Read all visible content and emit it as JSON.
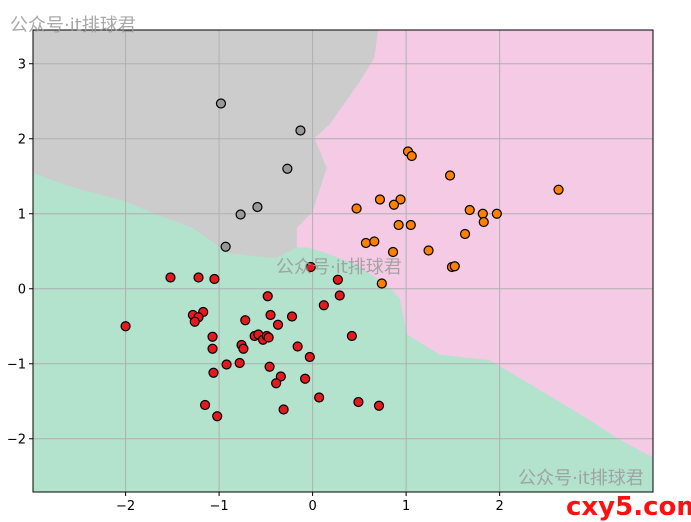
{
  "chart_data": {
    "type": "scatter",
    "title": "",
    "xlabel": "",
    "ylabel": "",
    "xlim": [
      -2.99,
      3.64
    ],
    "ylim": [
      -2.71,
      3.45
    ],
    "grid": true,
    "xticks": [
      -2,
      -1,
      0,
      1,
      2
    ],
    "yticks": [
      -2,
      -1,
      0,
      1,
      2,
      3
    ],
    "xtick_labels": [
      "−2",
      "−1",
      "0",
      "1",
      "2"
    ],
    "ytick_labels": [
      "−2",
      "−1",
      "0",
      "1",
      "2",
      "3"
    ],
    "regions": [
      {
        "class": "pink",
        "color": "#f4cae4",
        "vertices": [
          [
            0.7,
            3.45
          ],
          [
            3.64,
            3.45
          ],
          [
            3.64,
            -2.25
          ],
          [
            3.28,
            -2.01
          ],
          [
            2.96,
            -1.75
          ],
          [
            2.43,
            -1.35
          ],
          [
            1.89,
            -0.95
          ],
          [
            1.36,
            -0.88
          ],
          [
            1.01,
            -0.61
          ],
          [
            0.93,
            -0.12
          ],
          [
            0.79,
            0.05
          ],
          [
            0.47,
            0.32
          ],
          [
            0.11,
            0.49
          ],
          [
            -0.06,
            0.55
          ],
          [
            -0.17,
            0.55
          ],
          [
            -0.17,
            3.45
          ]
        ]
      },
      {
        "class": "gray",
        "color": "#cccccc",
        "vertices": [
          [
            -2.99,
            3.45
          ],
          [
            0.7,
            3.45
          ],
          [
            0.66,
            3.08
          ],
          [
            0.53,
            2.81
          ],
          [
            0.18,
            2.19
          ],
          [
            0.02,
            2.01
          ],
          [
            0.15,
            1.61
          ],
          [
            0.0,
            1.03
          ],
          [
            -0.17,
            0.81
          ],
          [
            -0.17,
            0.55
          ],
          [
            -0.39,
            0.41
          ],
          [
            -0.89,
            0.47
          ],
          [
            -1.03,
            0.59
          ],
          [
            -1.28,
            0.81
          ],
          [
            -1.67,
            0.99
          ],
          [
            -1.99,
            1.16
          ],
          [
            -2.67,
            1.39
          ],
          [
            -2.99,
            1.55
          ]
        ]
      }
    ],
    "background_region_color": "#b3e2cd",
    "series": [
      {
        "color": "#999999",
        "points": [
          [
            -0.98,
            2.47
          ],
          [
            -0.13,
            2.11
          ],
          [
            -0.27,
            1.6
          ],
          [
            -0.59,
            1.09
          ],
          [
            -0.77,
            0.99
          ],
          [
            -0.93,
            0.56
          ]
        ]
      },
      {
        "color": "#ff7f00",
        "points": [
          [
            1.02,
            1.83
          ],
          [
            1.06,
            1.77
          ],
          [
            1.47,
            1.51
          ],
          [
            2.63,
            1.32
          ],
          [
            0.72,
            1.19
          ],
          [
            0.94,
            1.19
          ],
          [
            0.87,
            1.12
          ],
          [
            0.47,
            1.07
          ],
          [
            1.68,
            1.05
          ],
          [
            1.82,
            1.0
          ],
          [
            1.97,
            1.0
          ],
          [
            1.83,
            0.89
          ],
          [
            0.92,
            0.85
          ],
          [
            1.05,
            0.85
          ],
          [
            1.63,
            0.73
          ],
          [
            0.57,
            0.61
          ],
          [
            0.66,
            0.63
          ],
          [
            0.86,
            0.49
          ],
          [
            1.24,
            0.51
          ],
          [
            1.49,
            0.29
          ],
          [
            1.52,
            0.3
          ],
          [
            0.74,
            0.07
          ]
        ]
      },
      {
        "color": "#e41a1c",
        "points": [
          [
            -0.02,
            0.29
          ],
          [
            -1.52,
            0.15
          ],
          [
            -1.22,
            0.15
          ],
          [
            -1.05,
            0.13
          ],
          [
            0.27,
            0.12
          ],
          [
            -0.48,
            -0.1
          ],
          [
            0.29,
            -0.09
          ],
          [
            0.12,
            -0.22
          ],
          [
            -1.17,
            -0.31
          ],
          [
            -1.28,
            -0.35
          ],
          [
            -1.22,
            -0.38
          ],
          [
            -1.26,
            -0.44
          ],
          [
            -0.45,
            -0.35
          ],
          [
            -0.22,
            -0.37
          ],
          [
            -0.72,
            -0.42
          ],
          [
            -0.37,
            -0.48
          ],
          [
            -2.0,
            -0.5
          ],
          [
            -1.07,
            -0.64
          ],
          [
            -0.62,
            -0.63
          ],
          [
            -0.58,
            -0.61
          ],
          [
            -0.53,
            -0.68
          ],
          [
            -0.49,
            -0.63
          ],
          [
            -0.47,
            -0.65
          ],
          [
            0.42,
            -0.63
          ],
          [
            -0.76,
            -0.75
          ],
          [
            -0.74,
            -0.8
          ],
          [
            -1.07,
            -0.8
          ],
          [
            -0.16,
            -0.77
          ],
          [
            -0.03,
            -0.91
          ],
          [
            -0.92,
            -1.01
          ],
          [
            -0.78,
            -0.99
          ],
          [
            -0.46,
            -1.04
          ],
          [
            -1.06,
            -1.12
          ],
          [
            -0.34,
            -1.17
          ],
          [
            -0.39,
            -1.26
          ],
          [
            -0.08,
            -1.2
          ],
          [
            0.07,
            -1.45
          ],
          [
            -1.15,
            -1.55
          ],
          [
            0.49,
            -1.51
          ],
          [
            0.71,
            -1.56
          ],
          [
            -0.31,
            -1.61
          ],
          [
            -1.02,
            -1.7
          ]
        ]
      }
    ]
  },
  "watermarks": {
    "top_left": "公众号·it排球君",
    "center": "公众号·it排球君",
    "bottom_right": "公众号·it排球君",
    "logo": "cxy5.com"
  }
}
